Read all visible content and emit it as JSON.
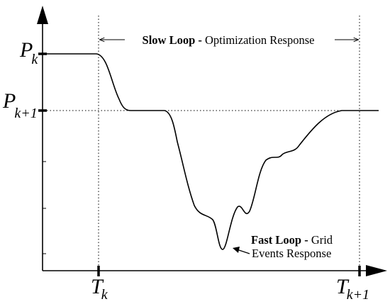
{
  "y_axis": {
    "upper_level": {
      "main": "P",
      "sub": "k"
    },
    "lower_level": {
      "main": "P",
      "sub": "k+1"
    }
  },
  "x_axis": {
    "start_time": {
      "main": "T",
      "sub": "k"
    },
    "end_time": {
      "main": "T",
      "sub": "k+1"
    }
  },
  "slow_loop": {
    "name": "Slow Loop",
    "separator": " - ",
    "desc": "Optimization Response"
  },
  "fast_loop": {
    "name": "Fast Loop",
    "separator": " - ",
    "desc_line1": "Grid",
    "desc_line2": "Events Response"
  }
}
